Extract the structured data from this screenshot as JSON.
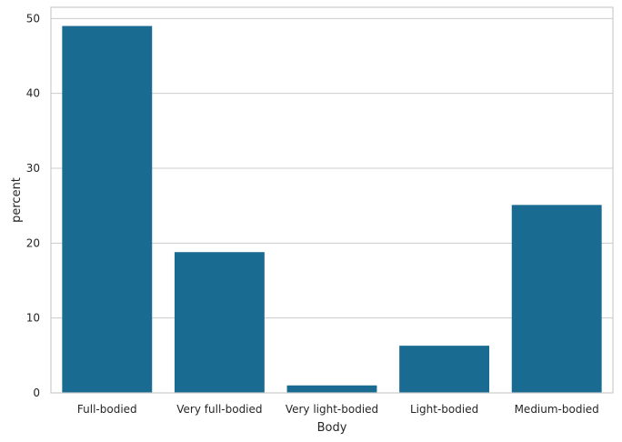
{
  "chart_data": {
    "type": "bar",
    "categories": [
      "Full-bodied",
      "Very full-bodied",
      "Very light-bodied",
      "Light-bodied",
      "Medium-bodied"
    ],
    "values": [
      49.0,
      18.8,
      1.0,
      6.3,
      25.1
    ],
    "xlabel": "Body",
    "ylabel": "percent",
    "ylim": [
      0,
      51.5
    ],
    "yticks": [
      0,
      10,
      20,
      30,
      40,
      50
    ],
    "grid": true,
    "bar_color": "#1a6b91"
  }
}
